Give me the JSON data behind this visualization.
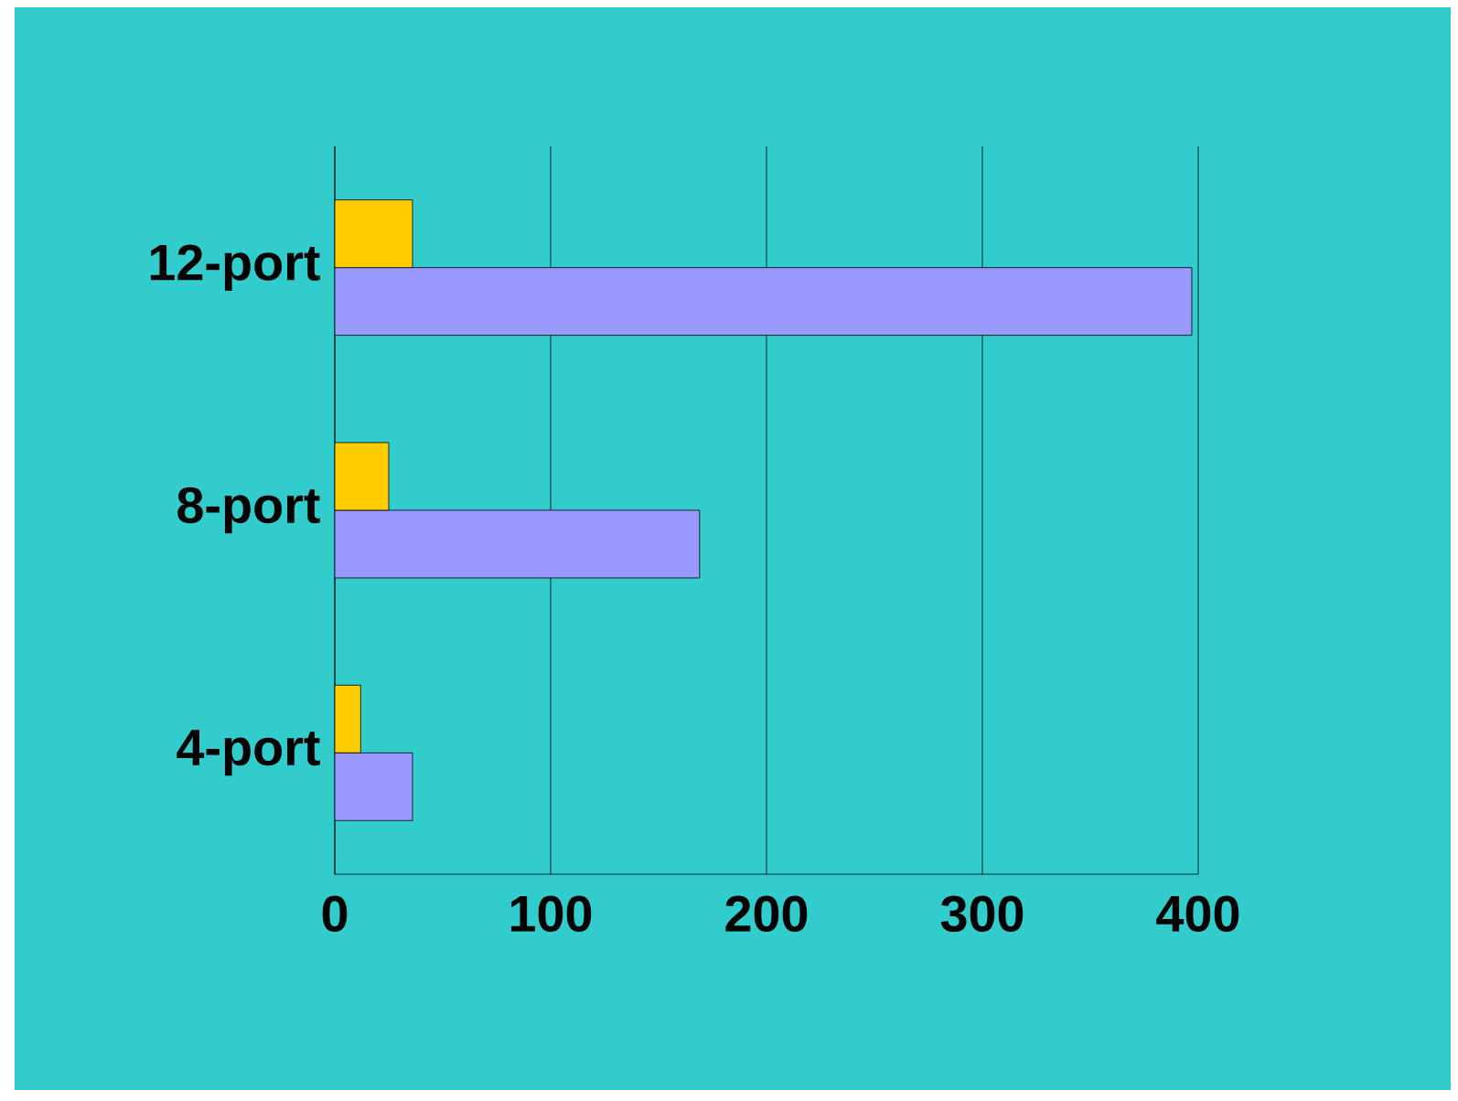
{
  "chart_data": {
    "type": "bar",
    "orientation": "horizontal",
    "categories": [
      "12-port",
      "8-port",
      "4-port"
    ],
    "series": [
      {
        "color": "#9999ff",
        "values": [
          397,
          169,
          36
        ]
      },
      {
        "color": "#ffcc00",
        "values": [
          36,
          25,
          12
        ]
      }
    ],
    "xlim": [
      0,
      400
    ],
    "xticks": [
      0,
      100,
      200,
      300,
      400
    ],
    "grid": "x"
  }
}
